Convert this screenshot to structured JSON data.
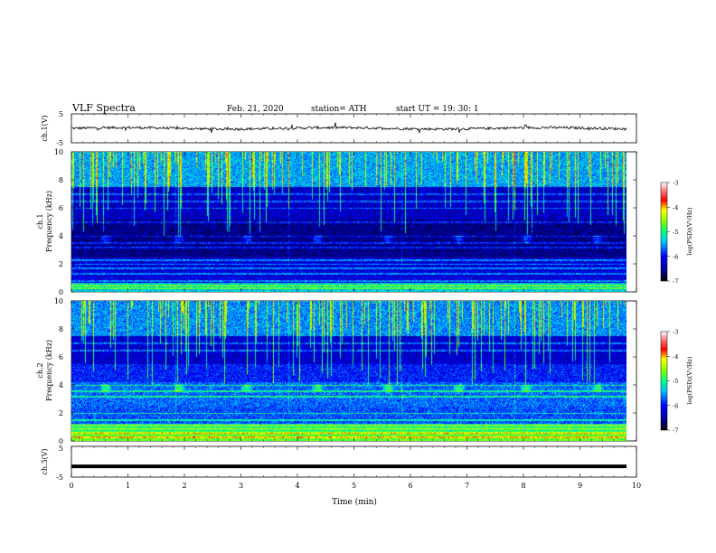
{
  "header": {
    "title": "VLF  Spectra",
    "date": "Feb. 21, 2020",
    "station": "station= ATH",
    "start": "start  UT  =    19: 30: 1"
  },
  "chart_data": [
    {
      "type": "line",
      "panel": "ch1-waveform",
      "ylabel": "ch.1(V)",
      "ylim": [
        -5,
        5
      ],
      "yticks": [
        "5",
        "-5"
      ],
      "xlim": [
        0,
        10
      ],
      "series": [
        {
          "note_level": 0.0,
          "amplitude_typical": 0.6
        }
      ]
    },
    {
      "type": "heatmap",
      "panel": "ch1-spectrogram",
      "ylabel_line1": "ch.1",
      "ylabel_line2": "Frequency  (kHz)",
      "ylim": [
        0,
        10
      ],
      "yticks": [
        "0",
        "2",
        "4",
        "6",
        "8",
        "10"
      ],
      "xlim": [
        0,
        10
      ],
      "colorbar": {
        "label": "log(PSD)(V²/Hz)",
        "ticks": [
          "-3",
          "-4",
          "-5",
          "-6",
          "-7"
        ],
        "range": [
          -7,
          -3
        ]
      },
      "bands_khz": [
        0.3,
        0.5,
        0.8,
        1.3,
        1.7,
        2.0,
        2.3,
        3.2,
        3.5,
        4.0,
        5.0,
        6.0,
        6.5,
        7.0
      ],
      "bursts_min": [
        0.6,
        1.9,
        3.1,
        4.35,
        5.6,
        6.85,
        8.05,
        9.3
      ]
    },
    {
      "type": "heatmap",
      "panel": "ch2-spectrogram",
      "ylabel_line1": "ch.2",
      "ylabel_line2": "Frequency  (kHz)",
      "ylim": [
        0,
        10
      ],
      "yticks": [
        "0",
        "2",
        "4",
        "6",
        "8",
        "10"
      ],
      "xlim": [
        0,
        10
      ],
      "colorbar": {
        "label": "log(PSD)(V²/Hz)",
        "ticks": [
          "-3",
          "-4",
          "-5",
          "-6",
          "-7"
        ],
        "range": [
          -7,
          -3
        ]
      },
      "bands_khz": [
        0.3,
        0.6,
        0.9,
        1.2,
        1.5,
        2.0,
        3.2,
        3.6,
        4.0,
        6.5,
        7.0
      ],
      "bursts_min": [
        0.6,
        1.9,
        3.1,
        4.35,
        5.6,
        6.85,
        8.05,
        9.3
      ]
    },
    {
      "type": "line",
      "panel": "ch3-waveform",
      "ylabel": "ch.3(V)",
      "ylim": [
        -5,
        5
      ],
      "yticks": [
        "5",
        "-5"
      ],
      "xlim": [
        0,
        10
      ],
      "series": [
        {
          "level": -1.5
        }
      ]
    }
  ],
  "xaxis": {
    "label": "Time  (min)",
    "ticks": [
      "0",
      "1",
      "2",
      "3",
      "4",
      "5",
      "6",
      "7",
      "8",
      "9",
      "10"
    ]
  }
}
